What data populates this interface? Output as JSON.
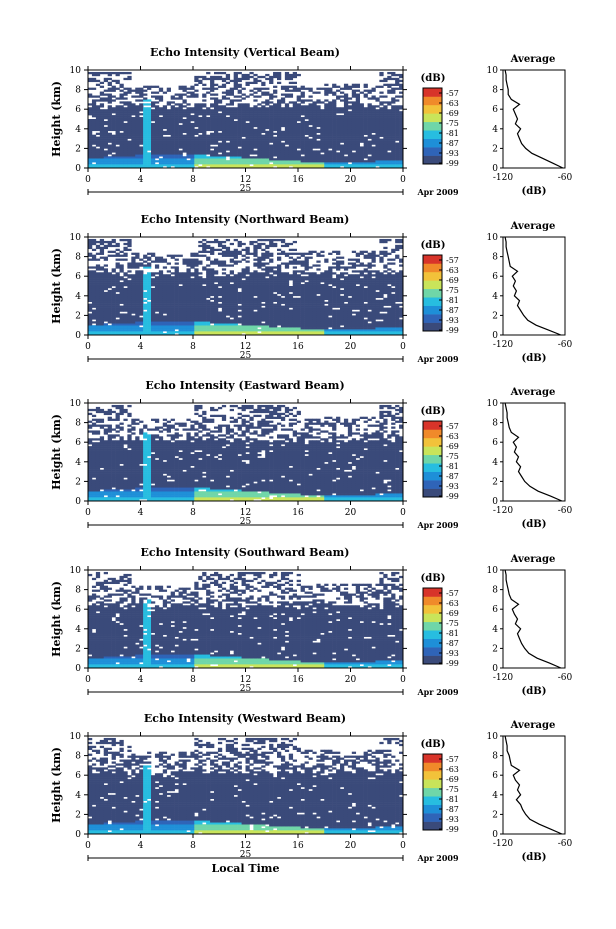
{
  "colors": {
    "background_field": "#3a4a7a",
    "colorbar": [
      "#3a4a7a",
      "#2f64b8",
      "#1e8fd8",
      "#27bde0",
      "#6fd6a8",
      "#c9e45a",
      "#f2c23a",
      "#f08a2a",
      "#d8342a"
    ]
  },
  "chart_data": [
    {
      "type": "heatmap",
      "title": "Echo Intensity (Vertical Beam)",
      "ylabel": "Height (km)",
      "ylim": [
        0,
        10
      ],
      "yticks": [
        "0",
        "2",
        "4",
        "6",
        "8",
        "10"
      ],
      "xlim": [
        0,
        24
      ],
      "xticks": [
        "0",
        "4",
        "8",
        "12",
        "16",
        "20",
        "0"
      ],
      "date_label": "25",
      "month_label": "Apr 2009",
      "colorbar": {
        "unit": "(dB)",
        "labels": [
          "-57",
          "-63",
          "-69",
          "-75",
          "-81",
          "-87",
          "-93",
          "-99"
        ]
      },
      "avg_profile": {
        "title": "Average",
        "xlabel": "(dB)",
        "xticks": [
          "-120",
          "-60"
        ],
        "yticks": [
          "0",
          "2",
          "4",
          "6",
          "8",
          "10"
        ],
        "height": [
          0,
          0.5,
          1,
          1.5,
          2,
          2.5,
          3,
          3.5,
          4,
          4.5,
          5,
          5.5,
          6,
          6.5,
          7,
          7.5,
          8,
          8.5,
          9,
          9.5,
          10
        ],
        "db": [
          -62,
          -72,
          -82,
          -92,
          -98,
          -102,
          -104,
          -106,
          -103,
          -108,
          -106,
          -108,
          -110,
          -104,
          -112,
          -115,
          -115,
          -116,
          -117,
          -117,
          -118
        ]
      }
    },
    {
      "type": "heatmap",
      "title": "Echo Intensity (Northward Beam)",
      "ylabel": "Height (km)",
      "ylim": [
        0,
        10
      ],
      "yticks": [
        "0",
        "2",
        "4",
        "6",
        "8",
        "10"
      ],
      "xlim": [
        0,
        24
      ],
      "xticks": [
        "0",
        "4",
        "8",
        "12",
        "16",
        "20",
        "0"
      ],
      "date_label": "25",
      "month_label": "Apr 2009",
      "colorbar": {
        "unit": "(dB)",
        "labels": [
          "-57",
          "-63",
          "-69",
          "-75",
          "-81",
          "-87",
          "-93",
          "-99"
        ]
      },
      "avg_profile": {
        "title": "Average",
        "xlabel": "(dB)",
        "xticks": [
          "-120",
          "-60"
        ],
        "yticks": [
          "0",
          "2",
          "4",
          "6",
          "8",
          "10"
        ],
        "height": [
          0,
          0.5,
          1,
          1.5,
          2,
          2.5,
          3,
          3.5,
          4,
          4.5,
          5,
          5.5,
          6,
          6.5,
          7,
          7.5,
          8,
          8.5,
          9,
          9.5,
          10
        ],
        "db": [
          -64,
          -76,
          -88,
          -96,
          -100,
          -103,
          -106,
          -104,
          -109,
          -107,
          -110,
          -108,
          -111,
          -106,
          -113,
          -114,
          -115,
          -116,
          -117,
          -117,
          -118
        ]
      }
    },
    {
      "type": "heatmap",
      "title": "Echo Intensity (Eastward Beam)",
      "ylabel": "Height (km)",
      "ylim": [
        0,
        10
      ],
      "yticks": [
        "0",
        "2",
        "4",
        "6",
        "8",
        "10"
      ],
      "xlim": [
        0,
        24
      ],
      "xticks": [
        "0",
        "4",
        "8",
        "12",
        "16",
        "20",
        "0"
      ],
      "date_label": "25",
      "month_label": "Apr 2009",
      "colorbar": {
        "unit": "(dB)",
        "labels": [
          "-57",
          "-63",
          "-69",
          "-75",
          "-81",
          "-87",
          "-93",
          "-99"
        ]
      },
      "avg_profile": {
        "title": "Average",
        "xlabel": "(dB)",
        "xticks": [
          "-120",
          "-60"
        ],
        "yticks": [
          "0",
          "2",
          "4",
          "6",
          "8",
          "10"
        ],
        "height": [
          0,
          0.5,
          1,
          1.5,
          2,
          2.5,
          3,
          3.5,
          4,
          4.5,
          5,
          5.5,
          6,
          6.5,
          7,
          7.5,
          8,
          8.5,
          9,
          9.5,
          10
        ],
        "db": [
          -63,
          -74,
          -86,
          -94,
          -99,
          -102,
          -105,
          -103,
          -107,
          -105,
          -109,
          -107,
          -110,
          -105,
          -112,
          -114,
          -115,
          -116,
          -116,
          -117,
          -118
        ]
      }
    },
    {
      "type": "heatmap",
      "title": "Echo Intensity (Southward Beam)",
      "ylabel": "Height (km)",
      "ylim": [
        0,
        10
      ],
      "yticks": [
        "0",
        "2",
        "4",
        "6",
        "8",
        "10"
      ],
      "xlim": [
        0,
        24
      ],
      "xticks": [
        "0",
        "4",
        "8",
        "12",
        "16",
        "20",
        "0"
      ],
      "date_label": "25",
      "month_label": "Apr 2009",
      "colorbar": {
        "unit": "(dB)",
        "labels": [
          "-57",
          "-63",
          "-69",
          "-75",
          "-81",
          "-87",
          "-93",
          "-99"
        ]
      },
      "avg_profile": {
        "title": "Average",
        "xlabel": "(dB)",
        "xticks": [
          "-120",
          "-60"
        ],
        "yticks": [
          "0",
          "2",
          "4",
          "6",
          "8",
          "10"
        ],
        "height": [
          0,
          0.5,
          1,
          1.5,
          2,
          2.5,
          3,
          3.5,
          4,
          4.5,
          5,
          5.5,
          6,
          6.5,
          7,
          7.5,
          8,
          8.5,
          9,
          9.5,
          10
        ],
        "db": [
          -64,
          -75,
          -87,
          -95,
          -99,
          -102,
          -104,
          -106,
          -103,
          -108,
          -106,
          -109,
          -111,
          -105,
          -112,
          -114,
          -115,
          -116,
          -117,
          -117,
          -118
        ]
      }
    },
    {
      "type": "heatmap",
      "title": "Echo Intensity (Westward Beam)",
      "ylabel": "Height (km)",
      "ylim": [
        0,
        10
      ],
      "yticks": [
        "0",
        "2",
        "4",
        "6",
        "8",
        "10"
      ],
      "xlim": [
        0,
        24
      ],
      "xticks": [
        "0",
        "4",
        "8",
        "12",
        "16",
        "20",
        "0"
      ],
      "date_label": "25",
      "month_label": "Apr 2009",
      "xlabel": "Local Time",
      "colorbar": {
        "unit": "(dB)",
        "labels": [
          "-57",
          "-63",
          "-69",
          "-75",
          "-81",
          "-87",
          "-93",
          "-99"
        ]
      },
      "avg_profile": {
        "title": "Average",
        "xlabel": "(dB)",
        "xticks": [
          "-120",
          "-60"
        ],
        "yticks": [
          "0",
          "2",
          "4",
          "6",
          "8",
          "10"
        ],
        "height": [
          0,
          0.5,
          1,
          1.5,
          2,
          2.5,
          3,
          3.5,
          4,
          4.5,
          5,
          5.5,
          6,
          6.5,
          7,
          7.5,
          8,
          8.5,
          9,
          9.5,
          10
        ],
        "db": [
          -63,
          -74,
          -85,
          -94,
          -98,
          -101,
          -103,
          -107,
          -103,
          -106,
          -104,
          -108,
          -110,
          -104,
          -112,
          -113,
          -114,
          -116,
          -116,
          -117,
          -118
        ]
      }
    }
  ]
}
